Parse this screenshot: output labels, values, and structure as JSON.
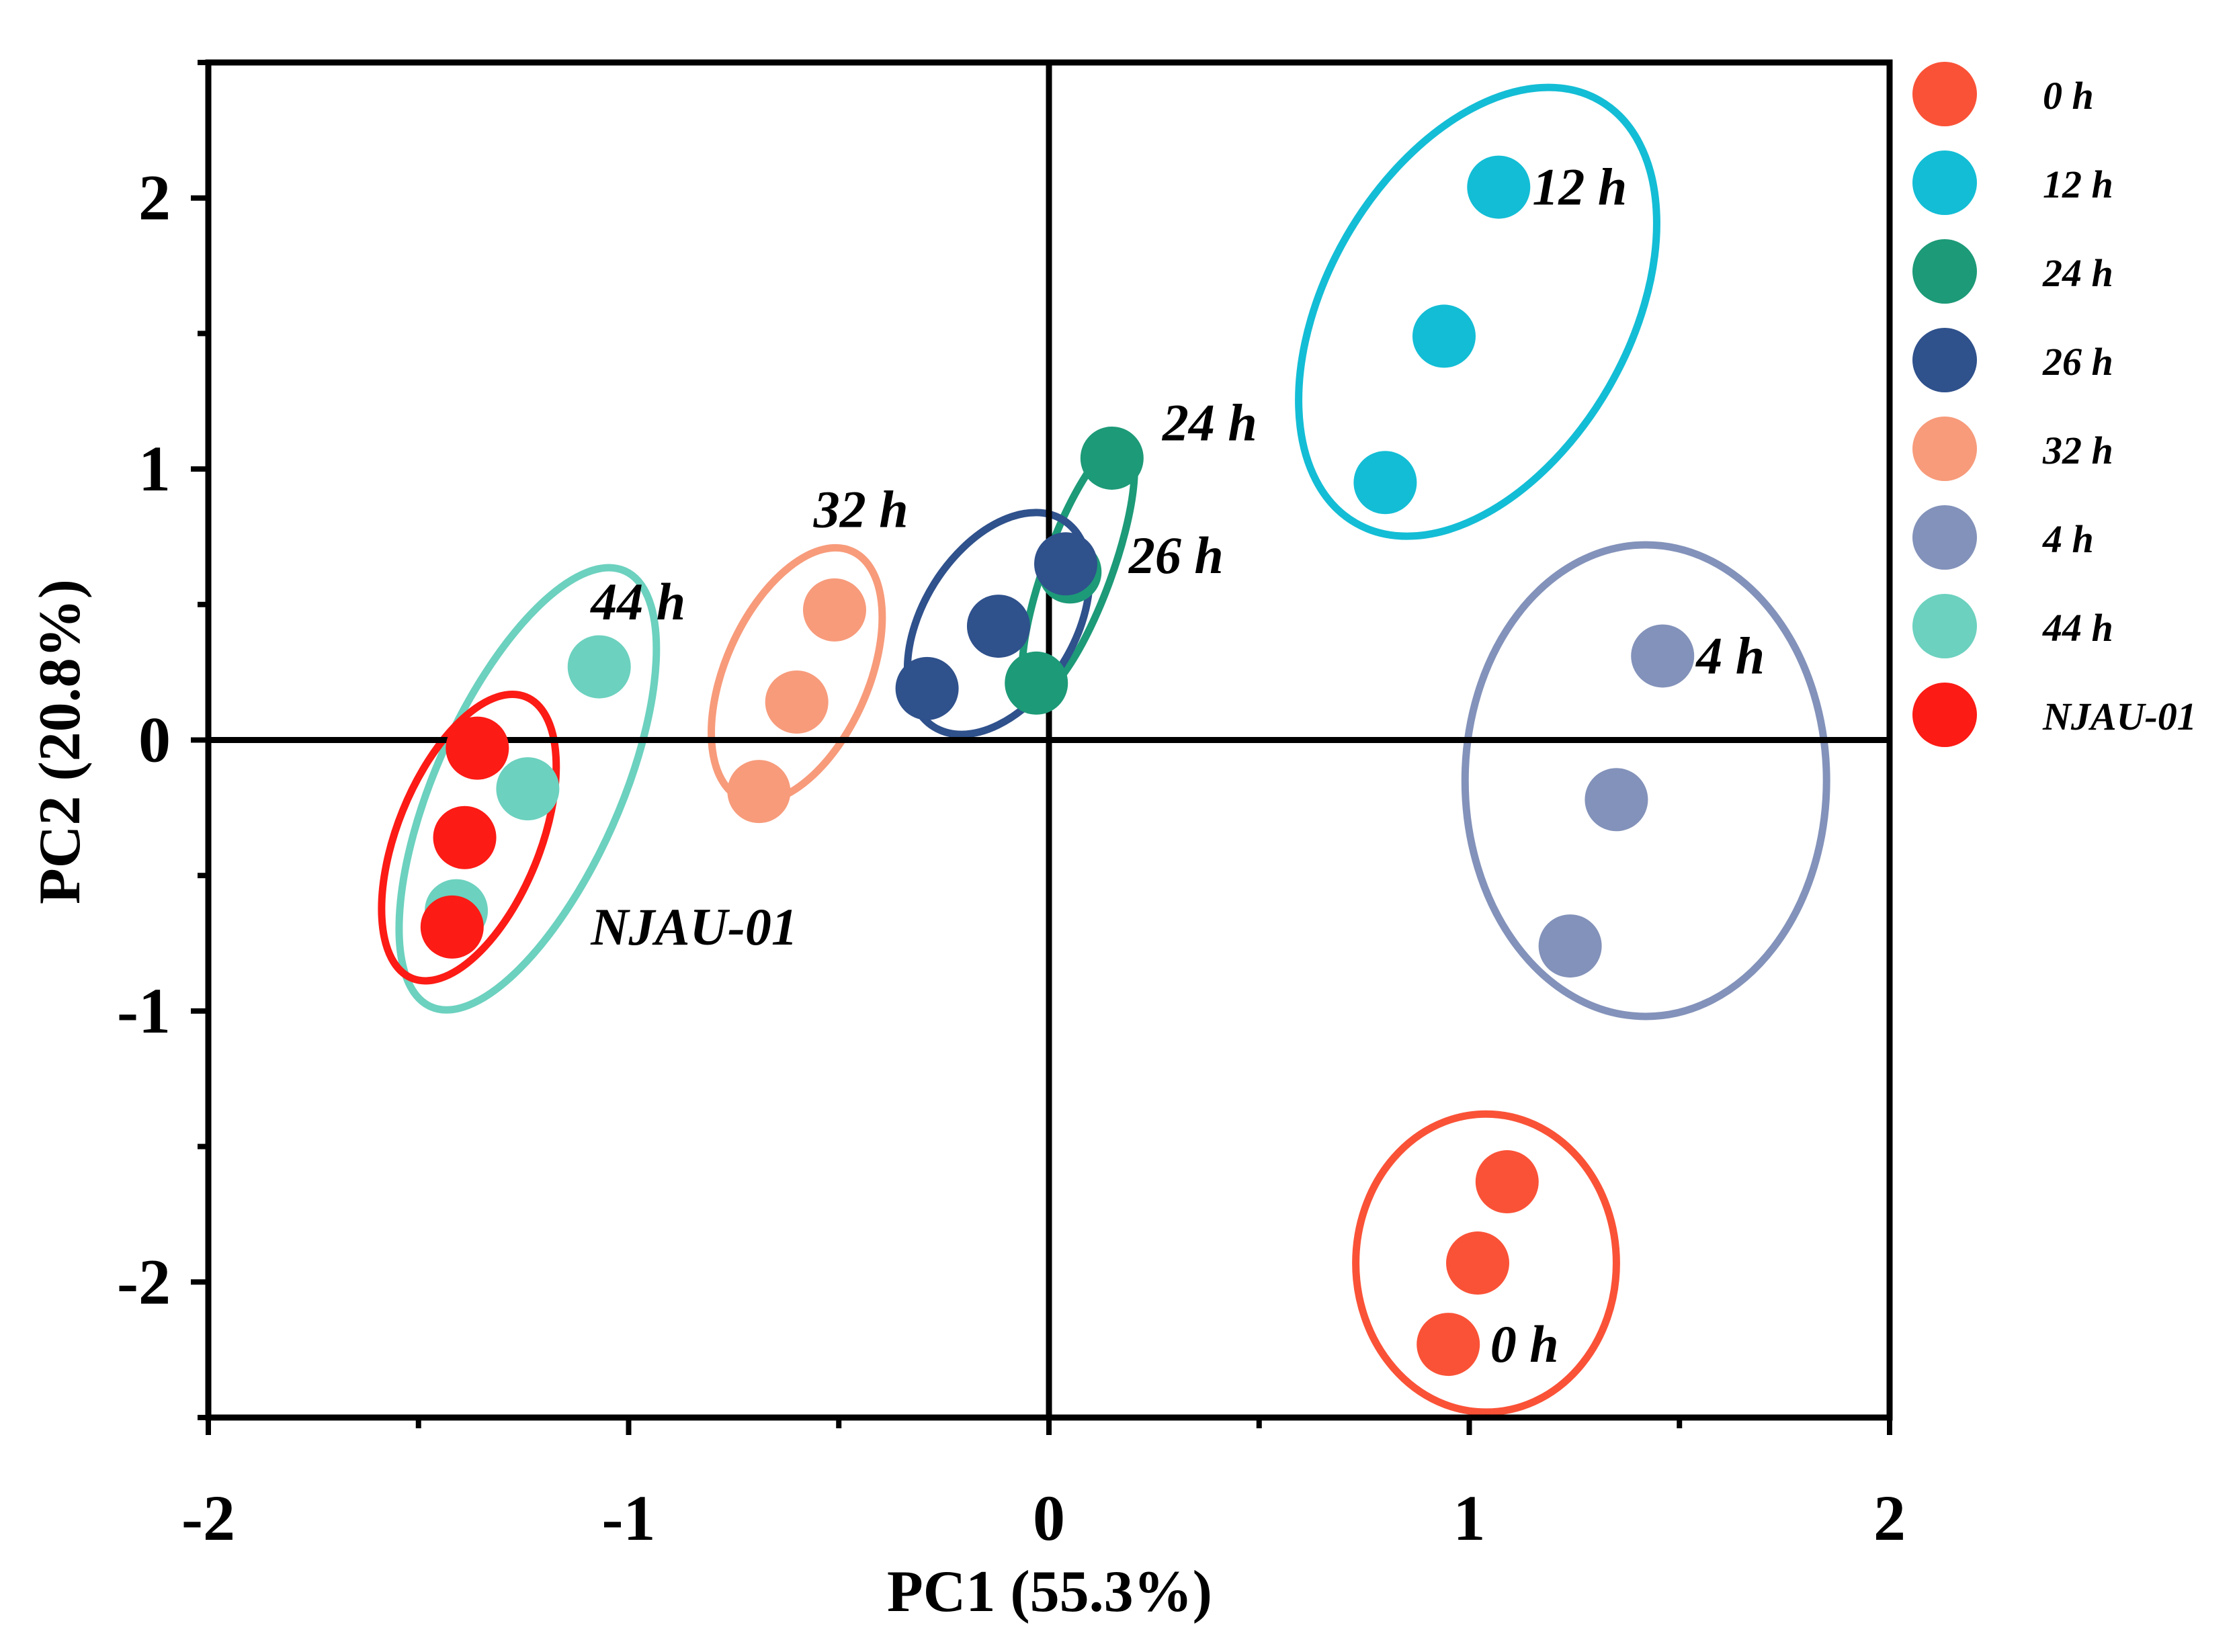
{
  "chart_data": {
    "type": "scatter",
    "title": "",
    "xlabel": "PC1 (55.3%)",
    "ylabel": "PC2 (20.8%)",
    "xlim": [
      -2,
      2
    ],
    "ylim": [
      -2.5,
      2.5
    ],
    "x_ticks": [
      -2,
      -1,
      0,
      1,
      2
    ],
    "x_tick_labels": [
      "-2",
      "-1",
      "0",
      "1",
      "2"
    ],
    "y_ticks": [
      -2,
      -1,
      0,
      1,
      2
    ],
    "y_tick_labels": [
      "-2",
      "-1",
      "0",
      "1",
      "2"
    ],
    "legend_position": "right",
    "series": [
      {
        "name": "0 h",
        "color": "#FA5237",
        "points": [
          [
            1.09,
            -1.63
          ],
          [
            1.02,
            -1.93
          ],
          [
            0.95,
            -2.23
          ]
        ],
        "ellipse": {
          "cx": 1.04,
          "cy": -1.93,
          "rx": 0.31,
          "ry": 0.55,
          "angle_deg": 0
        },
        "annotation": {
          "text": "0 h",
          "x": 1.05,
          "y": -2.23
        }
      },
      {
        "name": "12 h",
        "color": "#13BDD5",
        "points": [
          [
            1.07,
            2.04
          ],
          [
            0.94,
            1.49
          ],
          [
            0.8,
            0.95
          ]
        ],
        "ellipse": {
          "cx": 1.02,
          "cy": 1.58,
          "rx": 0.36,
          "ry": 0.9,
          "angle_deg": 30
        },
        "annotation": {
          "text": "12 h",
          "x": 1.15,
          "y": 2.04
        }
      },
      {
        "name": "24 h",
        "color": "#1D9A78",
        "points": [
          [
            0.15,
            1.04
          ],
          [
            0.05,
            0.62
          ],
          [
            -0.03,
            0.21
          ]
        ],
        "ellipse": {
          "cx": 0.07,
          "cy": 0.63,
          "rx": 0.08,
          "ry": 0.5,
          "angle_deg": 20
        },
        "annotation": {
          "text": "24 h",
          "x": 0.27,
          "y": 1.17
        }
      },
      {
        "name": "26 h",
        "color": "#2F518C",
        "points": [
          [
            0.04,
            0.65
          ],
          [
            -0.12,
            0.42
          ],
          [
            -0.29,
            0.19
          ]
        ],
        "ellipse": {
          "cx": -0.12,
          "cy": 0.43,
          "rx": 0.18,
          "ry": 0.45,
          "angle_deg": 32
        },
        "annotation": {
          "text": "26 h",
          "x": 0.19,
          "y": 0.68
        }
      },
      {
        "name": "32 h",
        "color": "#F79B7B",
        "points": [
          [
            -0.51,
            0.48
          ],
          [
            -0.6,
            0.14
          ],
          [
            -0.69,
            -0.19
          ]
        ],
        "ellipse": {
          "cx": -0.6,
          "cy": 0.24,
          "rx": 0.17,
          "ry": 0.5,
          "angle_deg": 24
        },
        "annotation": {
          "text": "32 h",
          "x": -0.56,
          "y": 0.85
        }
      },
      {
        "name": "4 h",
        "color": "#8392BA",
        "points": [
          [
            1.46,
            0.31
          ],
          [
            1.35,
            -0.22
          ],
          [
            1.24,
            -0.76
          ]
        ],
        "ellipse": {
          "cx": 1.42,
          "cy": -0.15,
          "rx": 0.43,
          "ry": 0.87,
          "angle_deg": 0
        },
        "annotation": {
          "text": "4 h",
          "x": 1.54,
          "y": 0.31
        }
      },
      {
        "name": "44 h",
        "color": "#6CD1BF",
        "points": [
          [
            -1.07,
            0.27
          ],
          [
            -1.24,
            -0.18
          ],
          [
            -1.41,
            -0.63
          ]
        ],
        "ellipse": {
          "cx": -1.24,
          "cy": -0.18,
          "rx": 0.22,
          "ry": 0.88,
          "angle_deg": 24
        },
        "annotation": {
          "text": "44 h",
          "x": -1.09,
          "y": 0.51
        }
      },
      {
        "name": "NJAU-01",
        "color": "#FC1B15",
        "points": [
          [
            -1.36,
            -0.03
          ],
          [
            -1.39,
            -0.36
          ],
          [
            -1.42,
            -0.69
          ]
        ],
        "ellipse": {
          "cx": -1.38,
          "cy": -0.36,
          "rx": 0.17,
          "ry": 0.56,
          "angle_deg": 22
        },
        "annotation": {
          "text": "NJAU-01",
          "x": -1.09,
          "y": -0.69
        }
      }
    ]
  }
}
